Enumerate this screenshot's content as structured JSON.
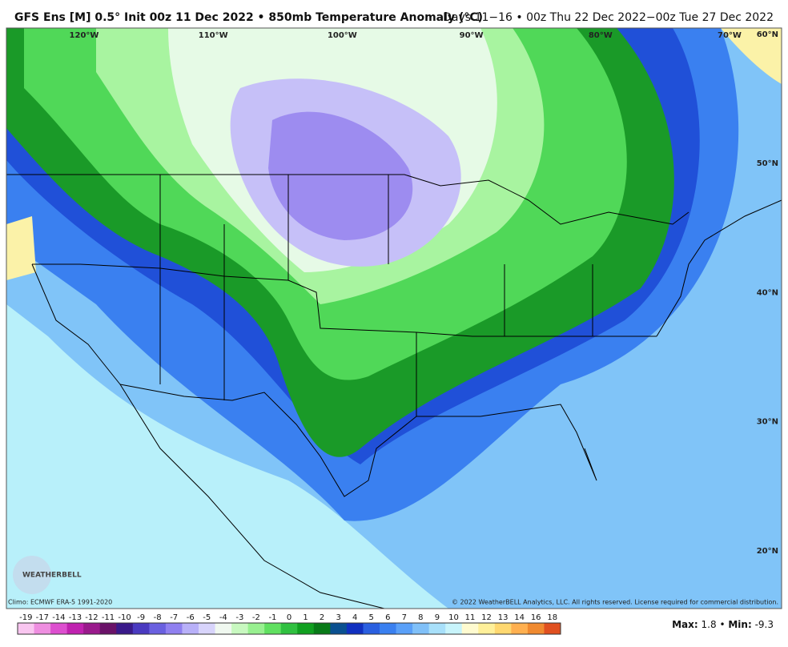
{
  "header": {
    "title": "GFS Ens [M] 0.5° Init 00z 11 Dec 2022 • 850mb Temperature Anomaly (°C)",
    "valid": "Days 11−16 • 00z Thu 22 Dec 2022−00z Tue 27 Dec 2022"
  },
  "map": {
    "longitudes": [
      "120°W",
      "110°W",
      "100°W",
      "90°W",
      "80°W",
      "70°W"
    ],
    "latitudes": [
      "60°N",
      "50°N",
      "40°N",
      "30°N",
      "20°N"
    ],
    "logo": "WEATHERBELL"
  },
  "footer": {
    "climo": "Climo: ECMWF ERA-5 1991-2020",
    "copyright": "© 2022 WeatherBELL Analytics, LLC. All rights reserved. License required for commercial distribution."
  },
  "colorbar": {
    "labels": [
      "-19",
      "-17",
      "-14",
      "-13",
      "-12",
      "-11",
      "-10",
      "-9",
      "-8",
      "-7",
      "-6",
      "-5",
      "-4",
      "-3",
      "-2",
      "-1",
      "0",
      "1",
      "2",
      "3",
      "4",
      "5",
      "6",
      "7",
      "8",
      "9",
      "10",
      "11",
      "12",
      "13",
      "14",
      "16",
      "18"
    ],
    "colors": [
      "#f9c6f0",
      "#ee8ee0",
      "#dd4fcf",
      "#c022b0",
      "#9a1a8c",
      "#6a1268",
      "#3a1a8a",
      "#4a3ac0",
      "#6a60e0",
      "#9080f0",
      "#b8b0f8",
      "#d8d4fb",
      "#f0f8f0",
      "#c8f8c0",
      "#98f090",
      "#60e060",
      "#30c040",
      "#10a020",
      "#087a18",
      "#0a5090",
      "#1030c0",
      "#2a5fe0",
      "#3a80f0",
      "#5aa0f8",
      "#80c0f8",
      "#a8e0fa",
      "#c8f4fb",
      "#fffbd0",
      "#fff09a",
      "#ffd870",
      "#ffb050",
      "#f08a30",
      "#e05020"
    ]
  },
  "stats": {
    "max_label": "Max:",
    "max_value": "1.8",
    "separator": "•",
    "min_label": "Min:",
    "min_value": "-9.3"
  }
}
